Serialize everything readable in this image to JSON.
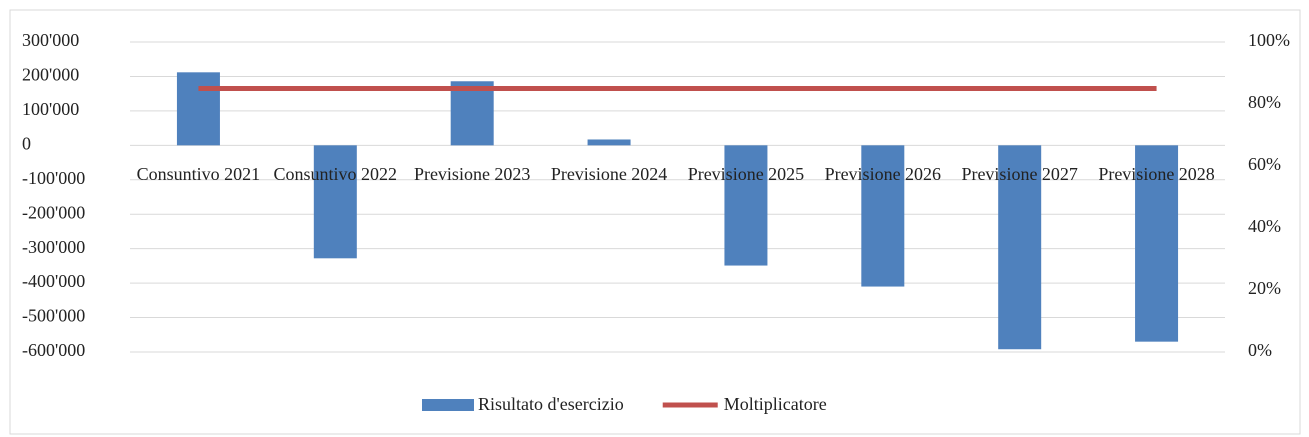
{
  "chart_data": {
    "type": "bar",
    "categories": [
      "Consuntivo 2021",
      "Consuntivo 2022",
      "Previsione 2023",
      "Previsione 2024",
      "Previsione 2025",
      "Previsione 2026",
      "Previsione 2027",
      "Previsione 2028"
    ],
    "series": [
      {
        "name": "Risultato d'esercizio",
        "color": "#4f81bd",
        "type": "bar",
        "values": [
          212000,
          -328000,
          186000,
          17000,
          -349000,
          -410000,
          -592000,
          -570000
        ]
      },
      {
        "name": "Moltiplicatore",
        "color": "#c0504d",
        "type": "line",
        "axis": "y2",
        "values": [
          85,
          85,
          85,
          85,
          85,
          85,
          85,
          85
        ]
      }
    ],
    "ylim": [
      -600000,
      300000
    ],
    "yticks": [
      {
        "value": -600000,
        "label": "-600'000"
      },
      {
        "value": -500000,
        "label": "-500'000"
      },
      {
        "value": -400000,
        "label": "-400'000"
      },
      {
        "value": -300000,
        "label": "-300'000"
      },
      {
        "value": -200000,
        "label": "-200'000"
      },
      {
        "value": -100000,
        "label": "-100'000"
      },
      0,
      {
        "value": 100000,
        "label": "100'000"
      },
      {
        "value": 200000,
        "label": "200'000"
      },
      {
        "value": 300000,
        "label": "300'000"
      }
    ],
    "y2lim": [
      0,
      100
    ],
    "y2ticks": [
      {
        "value": 0,
        "label": "0%"
      },
      {
        "value": 20,
        "label": "20%"
      },
      {
        "value": 40,
        "label": "40%"
      },
      {
        "value": 60,
        "label": "60%"
      },
      {
        "value": 80,
        "label": "80%"
      },
      {
        "value": 100,
        "label": "100%"
      }
    ],
    "grid": true,
    "legend": "bottom"
  }
}
